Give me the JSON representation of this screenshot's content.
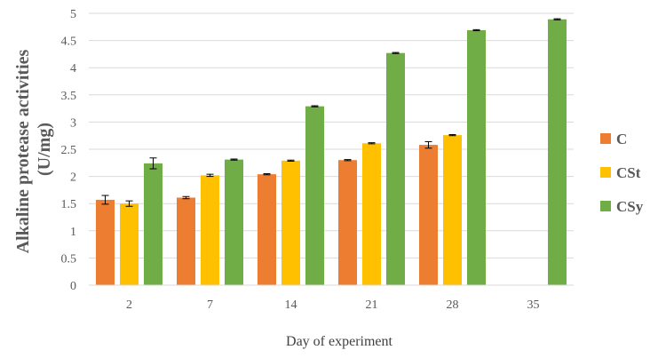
{
  "chart_data": {
    "type": "bar",
    "title": "",
    "xlabel": "Day of experiment",
    "ylabel_lines": [
      "Alkaline protease activities",
      "(U/mg)"
    ],
    "ylim": [
      0,
      5
    ],
    "yticks": [
      0,
      0.5,
      1,
      1.5,
      2,
      2.5,
      3,
      3.5,
      4,
      4.5,
      5
    ],
    "ytick_labels": [
      "0",
      "0.5",
      "1",
      "1.5",
      "2",
      "2.5",
      "3",
      "3.5",
      "4",
      "4.5",
      "5"
    ],
    "grid": true,
    "legend_position": "right",
    "categories": [
      "2",
      "7",
      "14",
      "21",
      "28",
      "35"
    ],
    "series": [
      {
        "name": "C",
        "color": "#ED7D31",
        "values": [
          1.57,
          1.61,
          2.04,
          2.3,
          2.58,
          null
        ],
        "errors": [
          0.08,
          0.02,
          0.01,
          0.01,
          0.06,
          null
        ]
      },
      {
        "name": "CSt",
        "color": "#FFC000",
        "values": [
          1.5,
          2.02,
          2.29,
          2.61,
          2.76,
          null
        ],
        "errors": [
          0.05,
          0.02,
          0.01,
          0.01,
          0.01,
          null
        ]
      },
      {
        "name": "CSy",
        "color": "#70AD47",
        "values": [
          2.24,
          2.31,
          3.29,
          4.27,
          4.69,
          4.89
        ],
        "errors": [
          0.1,
          0.01,
          0.01,
          0.01,
          0.01,
          0.01
        ]
      }
    ]
  }
}
